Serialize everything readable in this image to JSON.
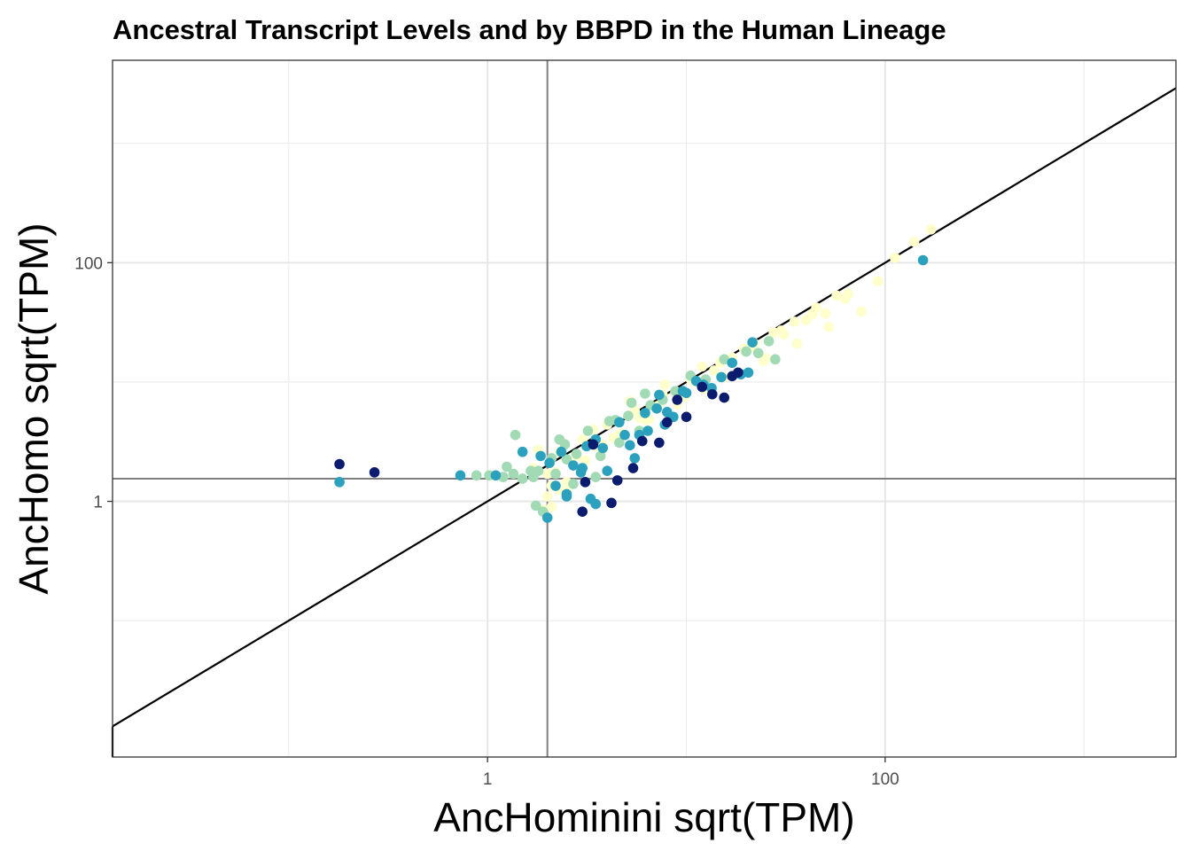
{
  "chart_data": {
    "type": "scatter",
    "title": "Ancestral Transcript Levels and by BBPD in the Human Lineage",
    "xlabel": "AncHominini sqrt(TPM)",
    "ylabel": "AncHomo sqrt(TPM)",
    "x_scale": "sqrt-log",
    "y_scale": "sqrt-log",
    "xlim": [
      0.013,
      2900
    ],
    "ylim": [
      0.0072,
      4970
    ],
    "x_ticks": [
      {
        "value": 1,
        "label": "1"
      },
      {
        "value": 100,
        "label": "100"
      }
    ],
    "y_ticks": [
      {
        "value": 1,
        "label": "1"
      },
      {
        "value": 100,
        "label": "100"
      }
    ],
    "x_minor_gridlines": [
      0.1,
      10,
      1000
    ],
    "y_minor_gridlines": [
      0.1,
      10,
      1000
    ],
    "grid": true,
    "reference_lines": {
      "identity": true,
      "vline_x": 2.0,
      "hline_y": 1.55
    },
    "colors": {
      "low": "#ffffcc",
      "mid_low": "#a1dab4",
      "mid_high": "#2ca1bd",
      "high": "#0b1c6e"
    },
    "series": [
      {
        "color": "#ffffcc",
        "x": [
          1.5,
          1.7,
          2.0,
          2.3,
          2.6,
          3.0,
          3.5,
          4.0,
          4.7,
          5.5,
          6.5,
          7.6,
          9.0,
          10.5,
          12.5,
          14.8,
          17.5,
          21.0,
          25.0,
          30.0,
          36.0,
          43.0,
          52.0,
          63.0,
          76.0,
          92.0,
          112.0,
          140.0,
          170.0,
          1.8,
          2.2,
          2.8,
          3.4,
          4.3,
          5.2,
          6.3,
          7.8,
          9.8,
          12.0,
          15.5,
          19.5,
          24.5,
          31.0,
          40.0,
          50.0,
          65.0,
          2.1,
          2.5,
          3.1,
          3.8,
          4.6,
          5.8,
          7.2,
          8.8,
          11.0,
          13.8,
          17.0,
          22.0,
          27.5,
          35.0,
          45.0,
          57.0,
          1.9,
          2.0,
          2.1,
          2.3,
          2.5
        ],
        "y": [
          1.55,
          1.9,
          1.7,
          2.6,
          2.2,
          3.3,
          2.9,
          4.4,
          3.7,
          5.8,
          4.9,
          7.8,
          6.5,
          10.6,
          8.6,
          14.5,
          11.5,
          19.5,
          15.8,
          27.0,
          21.0,
          37.0,
          29.0,
          50.0,
          39.0,
          70.0,
          110.0,
          150.0,
          190.0,
          2.7,
          1.75,
          2.4,
          4.0,
          3.4,
          6.9,
          4.8,
          9.5,
          7.5,
          13.5,
          11.0,
          19.0,
          15.0,
          25.0,
          33.0,
          37.5,
          55.0,
          1.35,
          1.2,
          2.2,
          3.0,
          3.6,
          5.0,
          6.3,
          8.2,
          10.0,
          12.5,
          16.0,
          21.0,
          26.0,
          32.0,
          42.0,
          53.0,
          0.85,
          1.1,
          0.9,
          1.25,
          1.45
        ]
      },
      {
        "color": "#a1dab4",
        "x": [
          0.88,
          1.02,
          1.2,
          1.25,
          1.35,
          1.38,
          1.5,
          1.65,
          1.7,
          1.8,
          2.1,
          2.2,
          2.3,
          2.45,
          2.5,
          2.7,
          2.8,
          3.2,
          3.5,
          3.7,
          4.1,
          4.4,
          4.6,
          5.1,
          5.3,
          5.8,
          6.2,
          6.6,
          7.6,
          8.8,
          10.5,
          12.5,
          15.5,
          20.0,
          23.0,
          26.0,
          28.0,
          1.9,
          1.75
        ],
        "y": [
          1.65,
          1.65,
          1.6,
          1.95,
          1.7,
          3.6,
          1.55,
          1.8,
          1.6,
          1.8,
          2.3,
          1.7,
          3.3,
          3.0,
          2.25,
          1.4,
          2.5,
          3.9,
          1.6,
          2.4,
          4.7,
          4.8,
          3.1,
          5.2,
          6.7,
          3.9,
          8.0,
          6.4,
          7.1,
          8.4,
          11.3,
          10.5,
          15.5,
          18.0,
          17.5,
          22.0,
          15.5,
          0.82,
          0.92
        ]
      },
      {
        "color": "#2ca1bd",
        "x": [
          0.18,
          0.73,
          1.1,
          1.85,
          2.05,
          2.2,
          2.35,
          2.5,
          2.7,
          2.95,
          3.0,
          3.15,
          3.5,
          3.8,
          4.0,
          4.6,
          4.9,
          5.2,
          5.5,
          5.8,
          6.2,
          6.4,
          7.1,
          7.3,
          7.8,
          8.0,
          8.6,
          9.6,
          10.0,
          11.2,
          12.2,
          13.4,
          15.0,
          17.0,
          18.8,
          20.5,
          21.5,
          2.0,
          2.5,
          3.3,
          3.5,
          155.0,
          1.5
        ],
        "y": [
          1.45,
          1.65,
          1.65,
          2.4,
          2.1,
          1.35,
          2.6,
          1.1,
          2.0,
          1.75,
          1.9,
          2.9,
          3.3,
          2.8,
          1.8,
          4.6,
          3.6,
          2.95,
          2.3,
          3.6,
          5.5,
          3.9,
          6.0,
          7.8,
          4.4,
          5.6,
          5.1,
          8.4,
          8.1,
          10.2,
          9.5,
          8.9,
          11.0,
          14.5,
          11.6,
          12.0,
          21.5,
          0.73,
          1.15,
          1.05,
          0.95,
          105.0,
          2.6
        ]
      },
      {
        "color": "#0b1c6e",
        "x": [
          0.18,
          0.27,
          3.1,
          3.4,
          4.2,
          4.5,
          5.4,
          6.0,
          7.3,
          8.0,
          9.0,
          10.0,
          12.0,
          13.5,
          15.5,
          17.0,
          18.2,
          3.0
        ],
        "y": [
          2.05,
          1.75,
          1.45,
          3.0,
          0.97,
          1.5,
          1.9,
          3.2,
          3.1,
          4.6,
          7.1,
          5.1,
          9.1,
          7.9,
          7.4,
          11.2,
          12.0,
          0.82
        ]
      }
    ]
  }
}
